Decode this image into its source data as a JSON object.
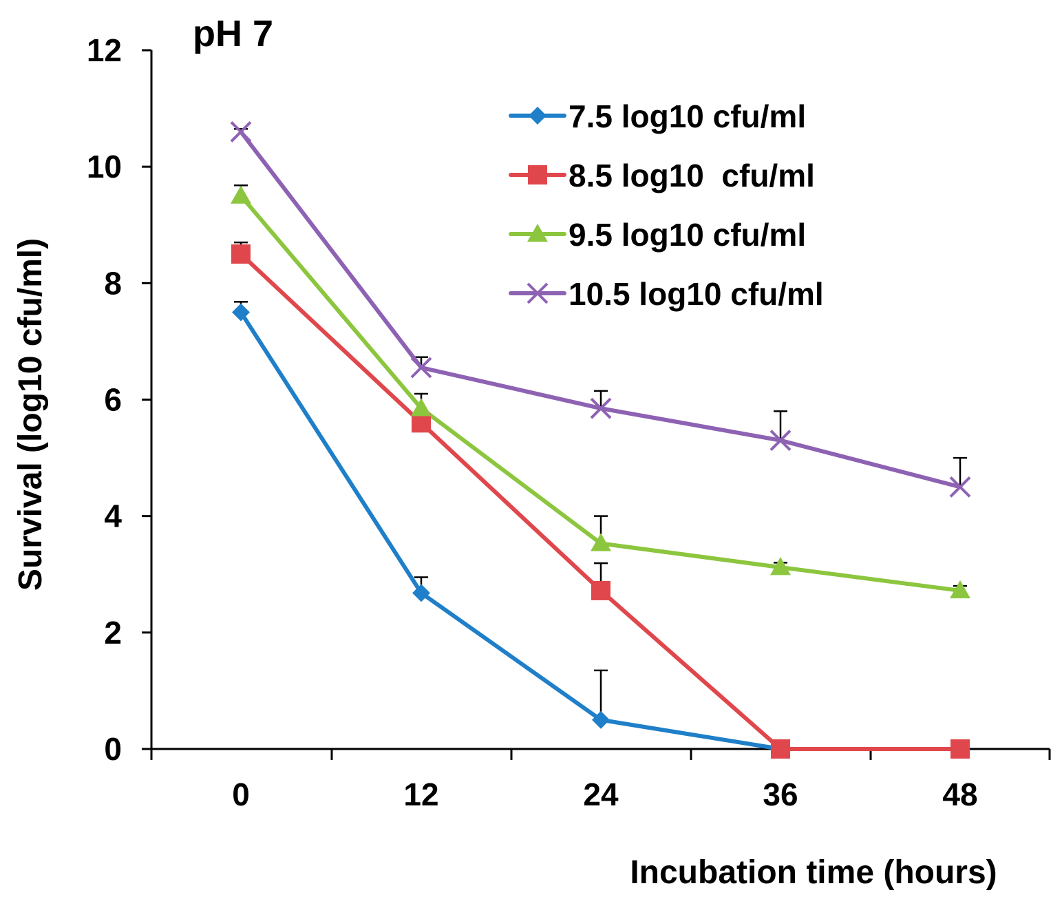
{
  "chart_data": {
    "type": "line",
    "title": "pH 7",
    "xlabel": "Incubation time (hours)",
    "ylabel": "Survival (log10 cfu/ml)",
    "x": [
      0,
      12,
      24,
      36,
      48
    ],
    "x_tick_labels": [
      "0",
      "12",
      "24",
      "36",
      "48"
    ],
    "ylim": [
      0,
      12
    ],
    "y_ticks": [
      0,
      2,
      4,
      6,
      8,
      10,
      12
    ],
    "y_tick_labels": [
      "0",
      "2",
      "4",
      "6",
      "8",
      "10",
      "12"
    ],
    "grid": false,
    "legend_position": "top-right",
    "series": [
      {
        "name": "7.5 log10 cfu/ml",
        "color": "#1f7fc8",
        "marker": "diamond",
        "values": [
          7.5,
          2.68,
          0.5,
          0,
          null
        ],
        "errors": [
          0.18,
          0.27,
          0.85,
          0,
          0
        ]
      },
      {
        "name": "8.5 log10  cfu/ml",
        "color": "#e0474c",
        "marker": "square",
        "values": [
          8.5,
          5.6,
          2.72,
          0,
          0
        ],
        "errors": [
          0.2,
          0.2,
          0.47,
          0,
          0
        ]
      },
      {
        "name": "9.5 log10 cfu/ml",
        "color": "#8cc63f",
        "marker": "triangle",
        "values": [
          9.5,
          5.85,
          3.53,
          3.12,
          2.72
        ],
        "errors": [
          0.18,
          0.25,
          0.47,
          0.08,
          0.08
        ]
      },
      {
        "name": "10.5 log10 cfu/ml",
        "color": "#8e62b3",
        "marker": "x",
        "values": [
          10.6,
          6.55,
          5.85,
          5.3,
          4.5
        ],
        "errors": [
          0.05,
          0.18,
          0.3,
          0.5,
          0.5
        ]
      }
    ]
  }
}
